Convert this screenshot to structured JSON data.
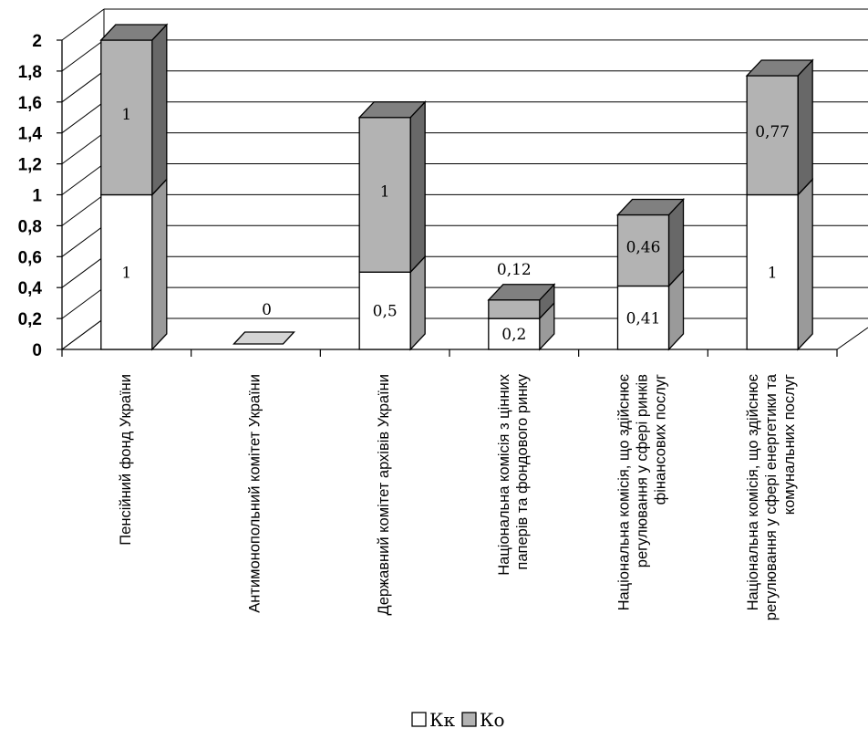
{
  "chart_data": {
    "type": "bar",
    "stacked": true,
    "three_d": true,
    "categories": [
      [
        "Пенсійний фонд України"
      ],
      [
        "Антимонопольний комітет  України"
      ],
      [
        "Державний комітет архівів  України"
      ],
      [
        "Національна комісія з цінних",
        "паперів та фондового ринку"
      ],
      [
        "Національна комісія, що здійснює",
        "регулювання у сфері ринків",
        "фінансових послуг"
      ],
      [
        "Національна комісія, що здійснює",
        "регулювання у сфері енергетики та",
        "комунальних послуг"
      ]
    ],
    "series": [
      {
        "name": "Кк",
        "color": "#ffffff",
        "values": [
          1,
          0,
          0.5,
          0.2,
          0.41,
          1
        ]
      },
      {
        "name": "Ко",
        "color": "#b3b3b3",
        "values": [
          1,
          0,
          1,
          0.12,
          0.46,
          0.77
        ]
      }
    ],
    "labels": {
      "Кк": [
        "1",
        "",
        "0,5",
        "0,2",
        "0,41",
        "1"
      ],
      "Ко": [
        "1",
        "0",
        "1",
        "0,12",
        "0,46",
        "0,77"
      ]
    },
    "yticks": [
      "0",
      "0,2",
      "0,4",
      "0,6",
      "0,8",
      "1",
      "1,2",
      "1,4",
      "1,6",
      "1,8",
      "2"
    ],
    "ylim": [
      0,
      2
    ],
    "grid": true,
    "legend_position": "bottom-center",
    "colors": {
      "front_light": "#ffffff",
      "front_dark": "#b3b3b3",
      "side_light": "#9a9a9a",
      "side_dark": "#686868",
      "top_dark": "#808080",
      "top_light": "#d4d4d4"
    }
  }
}
